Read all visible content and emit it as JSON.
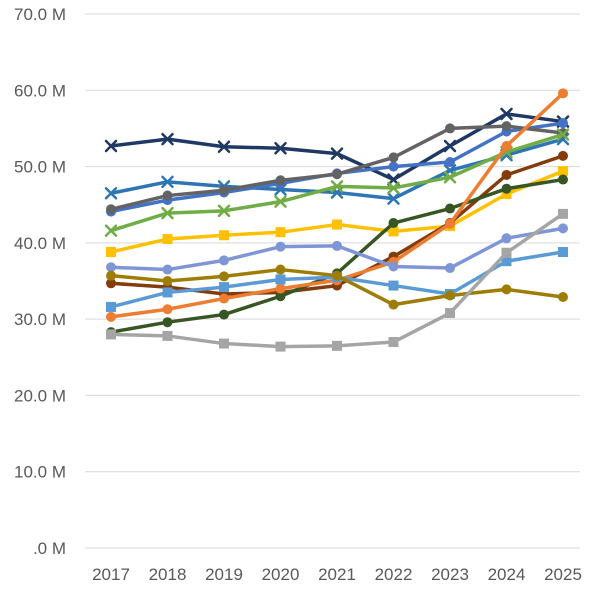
{
  "chart_data": {
    "type": "line",
    "title": "",
    "xlabel": "",
    "ylabel": "",
    "x": [
      "2017",
      "2018",
      "2019",
      "2020",
      "2021",
      "2022",
      "2023",
      "2024",
      "2025"
    ],
    "ylim": [
      0,
      70
    ],
    "y_ticks": [
      0,
      10,
      20,
      30,
      40,
      50,
      60,
      70
    ],
    "y_tick_labels": [
      ".0 M",
      "10.0 M",
      "20.0 M",
      "30.0 M",
      "40.0 M",
      "50.0 M",
      "60.0 M",
      "70.0 M"
    ],
    "grid": "horizontal",
    "legend": "none",
    "series": [
      {
        "color": "#1f3864",
        "marker": "x",
        "values": [
          52.7,
          53.6,
          52.6,
          52.4,
          51.7,
          48.3,
          52.7,
          56.9,
          55.9
        ]
      },
      {
        "color": "#2e75b6",
        "marker": "x",
        "values": [
          46.5,
          48.0,
          47.4,
          47.0,
          46.6,
          45.8,
          49.5,
          51.5,
          53.6
        ]
      },
      {
        "color": "#4472c4",
        "marker": "circle",
        "values": [
          44.1,
          45.6,
          46.6,
          47.8,
          49.1,
          50.0,
          50.6,
          54.6,
          55.7
        ]
      },
      {
        "color": "#636363",
        "marker": "circle",
        "values": [
          44.4,
          46.2,
          46.9,
          48.2,
          49.0,
          51.2,
          55.0,
          55.3,
          54.4
        ]
      },
      {
        "color": "#70ad47",
        "marker": "x",
        "values": [
          41.6,
          43.9,
          44.2,
          45.4,
          47.4,
          47.2,
          48.6,
          51.9,
          54.2
        ]
      },
      {
        "color": "#ffc000",
        "marker": "square",
        "values": [
          38.8,
          40.5,
          41.0,
          41.4,
          42.4,
          41.5,
          42.2,
          46.4,
          49.4
        ]
      },
      {
        "color": "#843c0c",
        "marker": "circle",
        "values": [
          34.7,
          34.2,
          33.3,
          33.5,
          34.4,
          38.2,
          42.6,
          48.9,
          51.4
        ]
      },
      {
        "color": "#375623",
        "marker": "circle",
        "values": [
          28.3,
          29.6,
          30.6,
          33.0,
          36.0,
          42.6,
          44.5,
          47.1,
          48.3
        ]
      },
      {
        "color": "#ed7d31",
        "marker": "circle",
        "values": [
          30.3,
          31.3,
          32.7,
          34.0,
          35.1,
          37.5,
          42.5,
          52.7,
          59.6
        ]
      },
      {
        "color": "#7f96d6",
        "marker": "circle",
        "values": [
          36.8,
          36.5,
          37.7,
          39.5,
          39.6,
          36.9,
          36.7,
          40.6,
          41.9
        ]
      },
      {
        "color": "#5b9bd5",
        "marker": "square",
        "values": [
          31.6,
          33.5,
          34.2,
          35.2,
          35.5,
          34.4,
          33.3,
          37.6,
          38.8
        ]
      },
      {
        "color": "#9e7d06",
        "marker": "circle",
        "values": [
          35.7,
          35.0,
          35.6,
          36.5,
          35.7,
          31.9,
          33.1,
          33.9,
          32.9
        ]
      },
      {
        "color": "#a5a5a5",
        "marker": "square",
        "values": [
          28.0,
          27.8,
          26.8,
          26.4,
          26.5,
          27.0,
          30.8,
          38.7,
          43.8
        ]
      }
    ]
  }
}
